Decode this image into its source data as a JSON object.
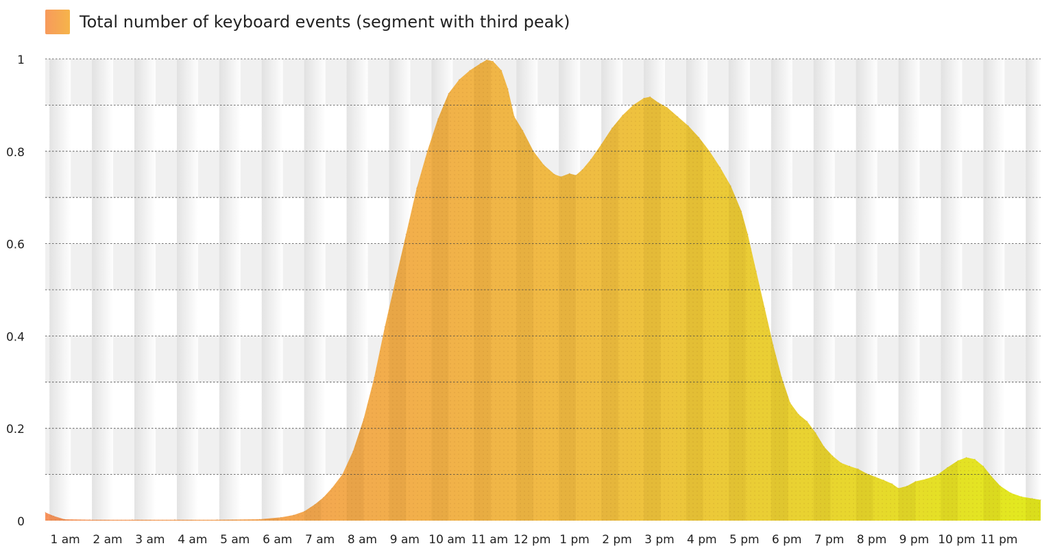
{
  "chart_data": {
    "type": "area",
    "title": "",
    "xlabel": "",
    "ylabel": "",
    "legend": {
      "position": "top-left",
      "entries": [
        {
          "label": "Total number of keyboard events (segment with third peak)",
          "colors": [
            "#f79a5c",
            "#f6b44a"
          ]
        }
      ]
    },
    "series": [
      {
        "name": "Total number of keyboard events (segment with third peak)"
      }
    ],
    "x_unit": "hour",
    "xlim": [
      0.45,
      23.9
    ],
    "ylim": [
      0,
      1
    ],
    "grid": true,
    "gradient": {
      "start": "#f7935d",
      "mid": "#efbd42",
      "end": "#e2ea1e"
    },
    "x_ticks": [
      {
        "value": 1,
        "label": "1 am"
      },
      {
        "value": 2,
        "label": "2 am"
      },
      {
        "value": 3,
        "label": "3 am"
      },
      {
        "value": 4,
        "label": "4 am"
      },
      {
        "value": 5,
        "label": "5 am"
      },
      {
        "value": 6,
        "label": "6 am"
      },
      {
        "value": 7,
        "label": "7 am"
      },
      {
        "value": 8,
        "label": "8 am"
      },
      {
        "value": 9,
        "label": "9 am"
      },
      {
        "value": 10,
        "label": "10 am"
      },
      {
        "value": 11,
        "label": "11 am"
      },
      {
        "value": 12,
        "label": "12 pm"
      },
      {
        "value": 13,
        "label": "1 pm"
      },
      {
        "value": 14,
        "label": "2 pm"
      },
      {
        "value": 15,
        "label": "3 pm"
      },
      {
        "value": 16,
        "label": "4 pm"
      },
      {
        "value": 17,
        "label": "5 pm"
      },
      {
        "value": 18,
        "label": "6 pm"
      },
      {
        "value": 19,
        "label": "7 pm"
      },
      {
        "value": 20,
        "label": "8 pm"
      },
      {
        "value": 21,
        "label": "9 pm"
      },
      {
        "value": 22,
        "label": "10 pm"
      },
      {
        "value": 23,
        "label": "11 pm"
      }
    ],
    "y_ticks": [
      {
        "value": 0,
        "label": "0"
      },
      {
        "value": 0.2,
        "label": "0.2"
      },
      {
        "value": 0.4,
        "label": "0.4"
      },
      {
        "value": 0.6,
        "label": "0.6"
      },
      {
        "value": 0.8,
        "label": "0.8"
      },
      {
        "value": 1,
        "label": "1"
      }
    ],
    "points": [
      [
        0.45,
        0.018
      ],
      [
        0.65,
        0.01
      ],
      [
        0.9,
        0.003
      ],
      [
        1.5,
        0.002
      ],
      [
        2.5,
        0.002
      ],
      [
        3.5,
        0.002
      ],
      [
        4.5,
        0.002
      ],
      [
        5.5,
        0.003
      ],
      [
        6.0,
        0.007
      ],
      [
        6.3,
        0.012
      ],
      [
        6.55,
        0.02
      ],
      [
        6.8,
        0.035
      ],
      [
        7.0,
        0.05
      ],
      [
        7.2,
        0.07
      ],
      [
        7.45,
        0.1
      ],
      [
        7.7,
        0.15
      ],
      [
        7.95,
        0.22
      ],
      [
        8.2,
        0.31
      ],
      [
        8.45,
        0.42
      ],
      [
        8.7,
        0.52
      ],
      [
        8.95,
        0.62
      ],
      [
        9.2,
        0.72
      ],
      [
        9.45,
        0.8
      ],
      [
        9.7,
        0.87
      ],
      [
        9.95,
        0.925
      ],
      [
        10.2,
        0.955
      ],
      [
        10.45,
        0.975
      ],
      [
        10.7,
        0.99
      ],
      [
        10.85,
        0.998
      ],
      [
        11.0,
        0.995
      ],
      [
        11.2,
        0.975
      ],
      [
        11.35,
        0.935
      ],
      [
        11.5,
        0.875
      ],
      [
        11.7,
        0.845
      ],
      [
        11.95,
        0.8
      ],
      [
        12.2,
        0.77
      ],
      [
        12.45,
        0.75
      ],
      [
        12.6,
        0.745
      ],
      [
        12.8,
        0.752
      ],
      [
        12.95,
        0.748
      ],
      [
        13.1,
        0.76
      ],
      [
        13.3,
        0.782
      ],
      [
        13.55,
        0.815
      ],
      [
        13.8,
        0.85
      ],
      [
        14.05,
        0.878
      ],
      [
        14.3,
        0.9
      ],
      [
        14.55,
        0.915
      ],
      [
        14.7,
        0.918
      ],
      [
        14.9,
        0.905
      ],
      [
        15.1,
        0.895
      ],
      [
        15.35,
        0.875
      ],
      [
        15.6,
        0.855
      ],
      [
        15.85,
        0.83
      ],
      [
        16.1,
        0.8
      ],
      [
        16.35,
        0.765
      ],
      [
        16.6,
        0.725
      ],
      [
        16.85,
        0.67
      ],
      [
        17.0,
        0.62
      ],
      [
        17.2,
        0.54
      ],
      [
        17.4,
        0.46
      ],
      [
        17.6,
        0.38
      ],
      [
        17.8,
        0.31
      ],
      [
        18.0,
        0.255
      ],
      [
        18.2,
        0.23
      ],
      [
        18.4,
        0.215
      ],
      [
        18.6,
        0.19
      ],
      [
        18.8,
        0.16
      ],
      [
        19.0,
        0.14
      ],
      [
        19.2,
        0.125
      ],
      [
        19.4,
        0.118
      ],
      [
        19.6,
        0.112
      ],
      [
        19.8,
        0.102
      ],
      [
        20.0,
        0.095
      ],
      [
        20.2,
        0.088
      ],
      [
        20.4,
        0.08
      ],
      [
        20.55,
        0.07
      ],
      [
        20.75,
        0.075
      ],
      [
        20.95,
        0.085
      ],
      [
        21.2,
        0.09
      ],
      [
        21.45,
        0.098
      ],
      [
        21.7,
        0.115
      ],
      [
        21.95,
        0.13
      ],
      [
        22.15,
        0.137
      ],
      [
        22.35,
        0.133
      ],
      [
        22.55,
        0.118
      ],
      [
        22.75,
        0.095
      ],
      [
        22.95,
        0.075
      ],
      [
        23.2,
        0.06
      ],
      [
        23.45,
        0.052
      ],
      [
        23.7,
        0.048
      ],
      [
        23.9,
        0.045
      ]
    ]
  }
}
